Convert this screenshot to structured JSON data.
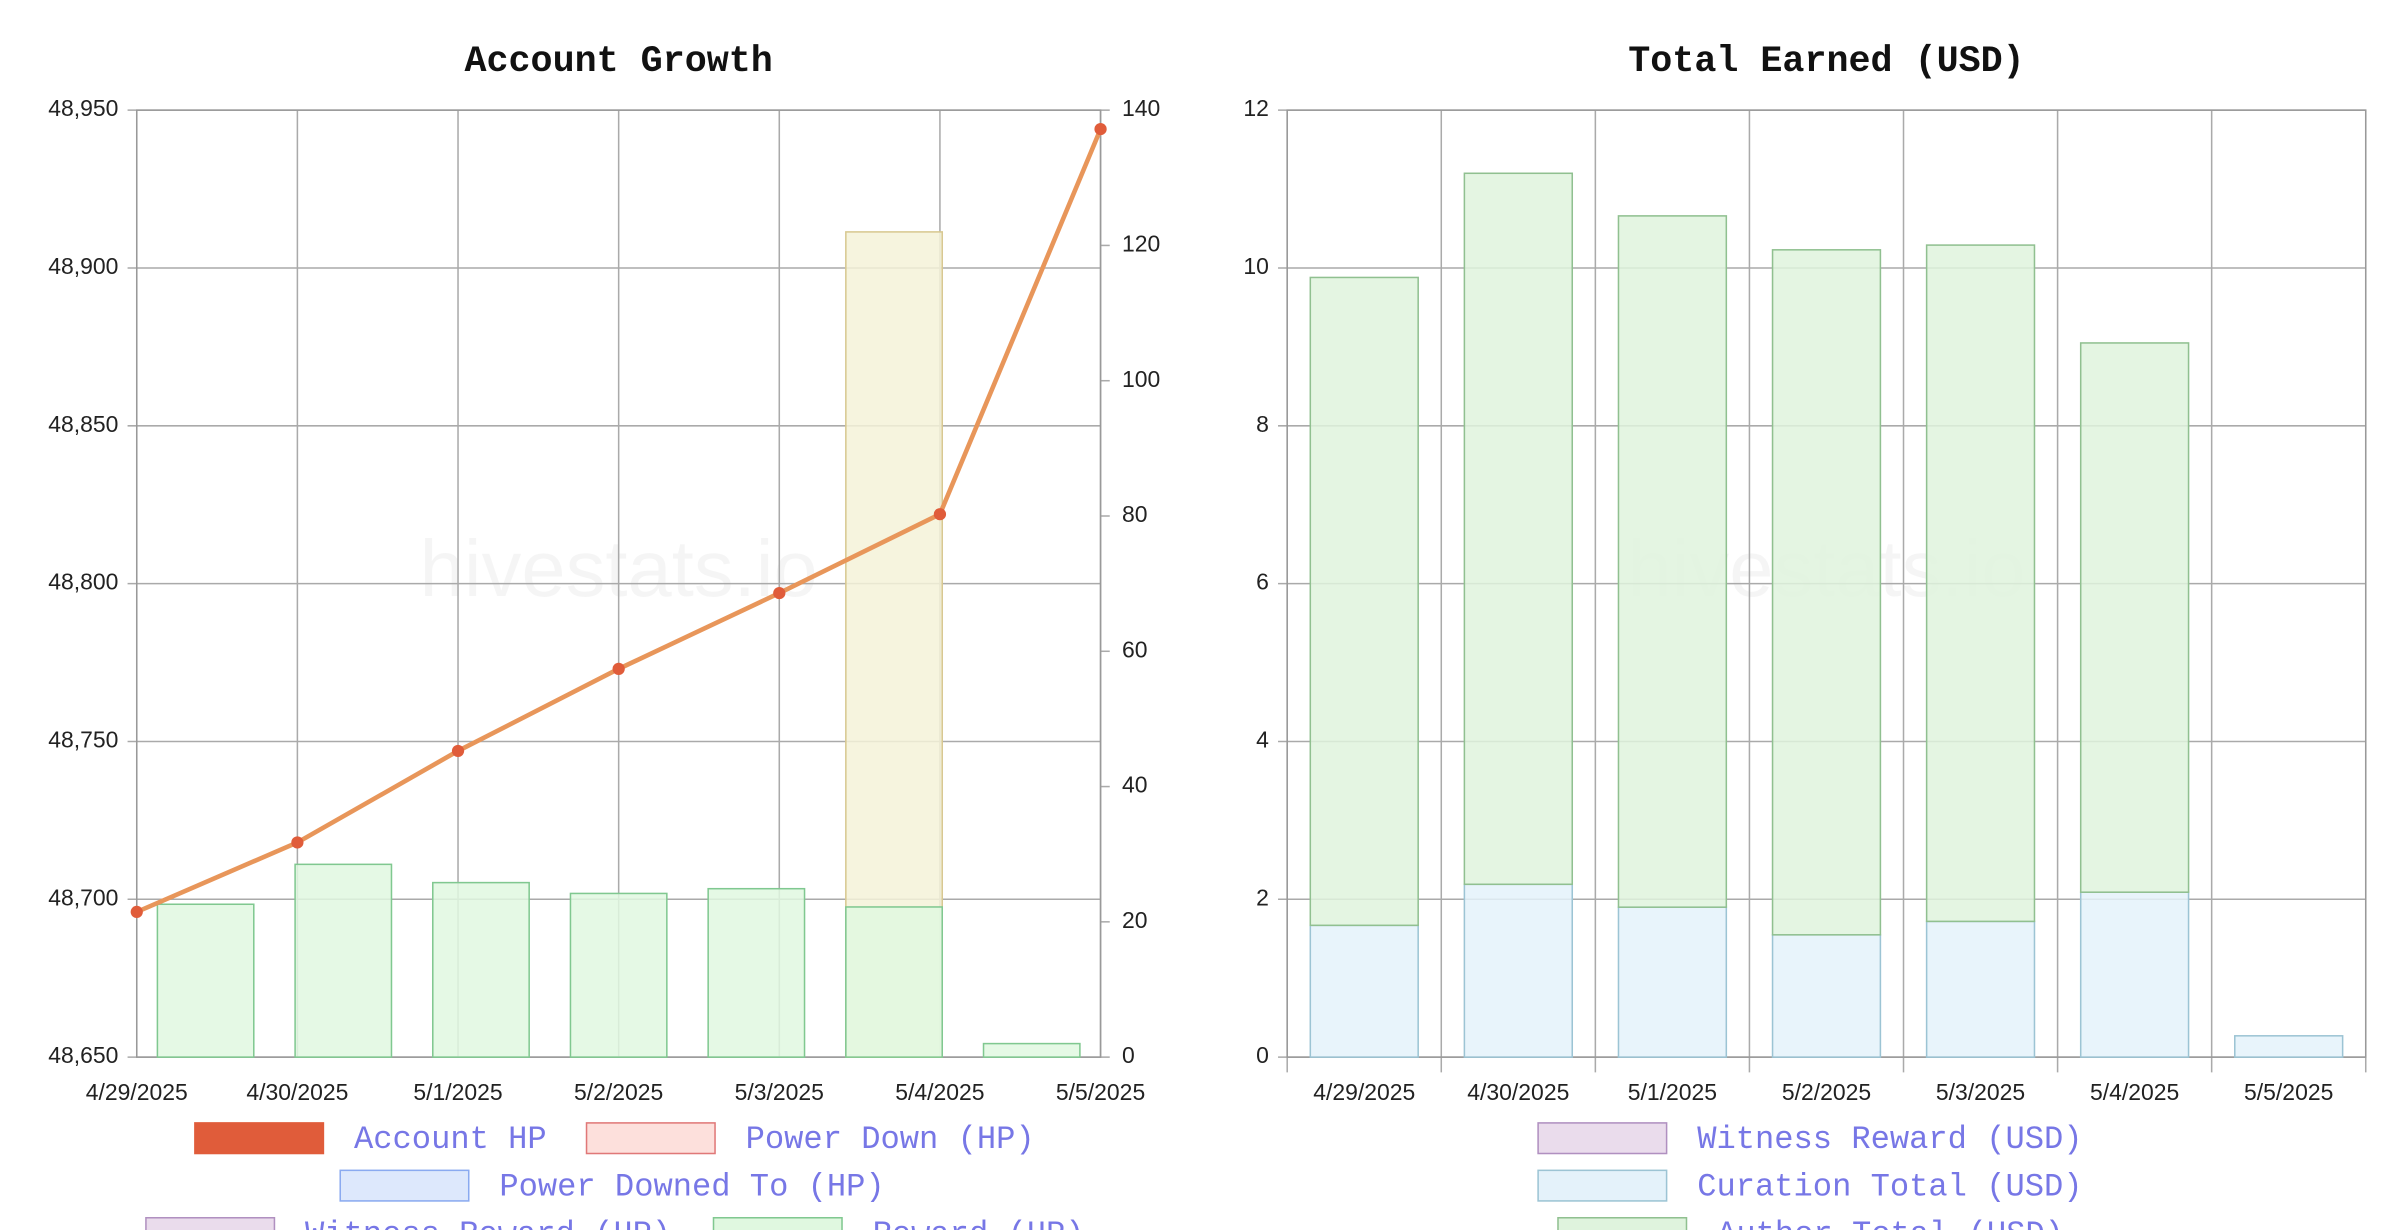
{
  "chart_data": [
    {
      "type": "combo",
      "title": "Account Growth",
      "watermark": "hivestats.io",
      "categories": [
        "4/29/2025",
        "4/30/2025",
        "5/1/2025",
        "5/2/2025",
        "5/3/2025",
        "5/4/2025",
        "5/5/2025"
      ],
      "ylim": [
        48650,
        48950
      ],
      "yticks": [
        {
          "value": 48650,
          "label": "48,650"
        },
        {
          "value": 48700,
          "label": "48,700"
        },
        {
          "value": 48750,
          "label": "48,750"
        },
        {
          "value": 48800,
          "label": "48,800"
        },
        {
          "value": 48850,
          "label": "48,850"
        },
        {
          "value": 48900,
          "label": "48,900"
        },
        {
          "value": 48950,
          "label": "48,950"
        }
      ],
      "y2lim": [
        0,
        140
      ],
      "y2ticks": [
        0,
        20,
        40,
        60,
        80,
        100,
        120,
        140
      ],
      "grid": true,
      "series": [
        {
          "name": "Account HP",
          "color": "#e05c3a",
          "line_color": "#e8965a",
          "kind": "line",
          "values": [
            48696,
            48718,
            48747,
            48773,
            48797,
            48822,
            48944
          ]
        },
        {
          "name": "Power Down (HP)",
          "color": "#fde0dc",
          "stroke": "#e07878"
        },
        {
          "name": "Power Downed To (HP)",
          "color": "#dde8fc",
          "stroke": "#8aaaf0"
        },
        {
          "name": "Witness Reward (HP)",
          "color": "#eadcec",
          "stroke": "#b090c0"
        },
        {
          "color": "#f5f2d8",
          "stroke": "#d8c890",
          "kind": "bar",
          "axis": "y2",
          "values": [
            null,
            null,
            null,
            null,
            null,
            122,
            null
          ]
        },
        {
          "name": "Reward (HP)",
          "color": "#e0f8e0",
          "stroke": "#80c890",
          "kind": "bar",
          "axis": "y2",
          "values": [
            22.6,
            28.5,
            25.8,
            24.2,
            24.9,
            22.2,
            2.0
          ]
        }
      ]
    },
    {
      "type": "stacked_bar",
      "title": "Total Earned (USD)",
      "watermark": "hivestats.io",
      "categories": [
        "4/29/2025",
        "4/30/2025",
        "5/1/2025",
        "5/2/2025",
        "5/3/2025",
        "5/4/2025",
        "5/5/2025"
      ],
      "ylim": [
        0,
        12
      ],
      "yticks": [
        0,
        2,
        4,
        6,
        8,
        10,
        12
      ],
      "grid": true,
      "series": [
        {
          "name": "Witness Reward (USD)",
          "color": "#eadcec",
          "stroke": "#b090c0"
        },
        {
          "name": "Curation Total (USD)",
          "color": "#e4f2fa",
          "stroke": "#9cc4d4",
          "kind": "bar",
          "values": [
            1.67,
            2.19,
            1.9,
            1.55,
            1.72,
            2.09,
            0.27
          ]
        },
        {
          "name": "Author Total (USD)",
          "color": "#dff3dd",
          "stroke": "#90c090",
          "kind": "bar",
          "values": [
            8.21,
            9.01,
            8.76,
            8.68,
            8.57,
            6.96,
            0
          ]
        }
      ]
    }
  ]
}
